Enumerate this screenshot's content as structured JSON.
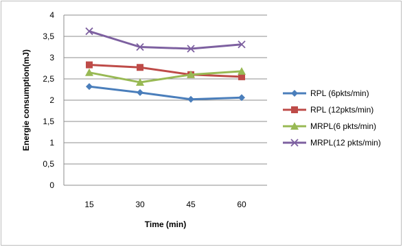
{
  "chart_data": {
    "type": "line",
    "title": "",
    "xlabel": "Time (min)",
    "ylabel": "Energie consumption(mJ)",
    "categories": [
      "15",
      "30",
      "45",
      "60"
    ],
    "ylim": [
      0,
      4
    ],
    "yticks": [
      "0",
      "0,5",
      "1",
      "1,5",
      "2",
      "2,5",
      "3",
      "3,5",
      "4"
    ],
    "grid": true,
    "legend": "right",
    "series": [
      {
        "name": "RPL (6pkts/min)",
        "values": [
          2.32,
          2.18,
          2.02,
          2.06
        ],
        "color": "#4a7ebb",
        "marker": "diamond"
      },
      {
        "name": "RPL (12pkts/min)",
        "values": [
          2.83,
          2.77,
          2.6,
          2.55
        ],
        "color": "#be4b48",
        "marker": "square"
      },
      {
        "name": "MRPL(6 pkts/min)",
        "values": [
          2.65,
          2.42,
          2.6,
          2.68
        ],
        "color": "#98b954",
        "marker": "triangle"
      },
      {
        "name": "MRPL(12 pkts/min)",
        "values": [
          3.62,
          3.25,
          3.21,
          3.31
        ],
        "color": "#7d60a0",
        "marker": "x"
      }
    ]
  }
}
